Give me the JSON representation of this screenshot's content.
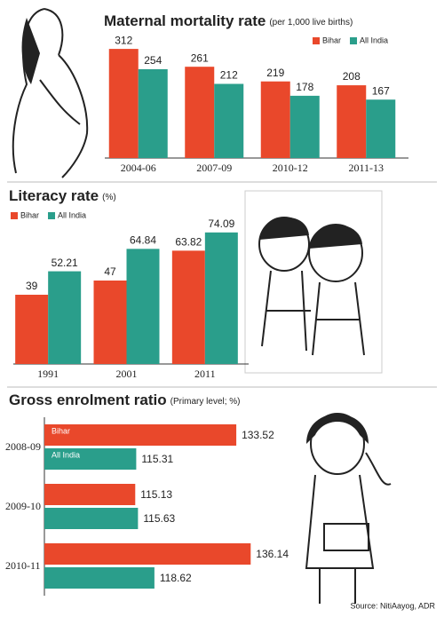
{
  "chart_data": [
    {
      "type": "bar",
      "title": "Maternal mortality rate",
      "subtitle": "(per 1,000 live births)",
      "categories": [
        "2004-06",
        "2007-09",
        "2010-12",
        "2011-13"
      ],
      "series": [
        {
          "name": "Bihar",
          "color": "#e9482b",
          "values": [
            312,
            261,
            219,
            208
          ]
        },
        {
          "name": "All India",
          "color": "#2a9e8b",
          "values": [
            254,
            212,
            178,
            167
          ]
        }
      ],
      "ylim": [
        0,
        330
      ],
      "legend": "upper right"
    },
    {
      "type": "bar",
      "title": "Literacy rate",
      "subtitle": "(%)",
      "categories": [
        "1991",
        "2001",
        "2011"
      ],
      "series": [
        {
          "name": "Bihar",
          "color": "#e9482b",
          "values": [
            39,
            47,
            63.82
          ]
        },
        {
          "name": "All India",
          "color": "#2a9e8b",
          "values": [
            52.21,
            64.84,
            74.09
          ]
        }
      ],
      "ylim": [
        0,
        80
      ],
      "legend": "upper left"
    },
    {
      "type": "barh",
      "title": "Gross enrolment ratio",
      "subtitle": "(Primary level; %)",
      "categories": [
        "2008-09",
        "2009-10",
        "2010-11"
      ],
      "series": [
        {
          "name": "Bihar",
          "color": "#e9482b",
          "values": [
            133.52,
            115.13,
            136.14
          ]
        },
        {
          "name": "All India",
          "color": "#2a9e8b",
          "values": [
            115.31,
            115.63,
            118.62
          ]
        }
      ],
      "xlim": [
        98.6,
        139
      ],
      "legend": "inside"
    }
  ],
  "source": "Source: NitiAayog, ADR"
}
